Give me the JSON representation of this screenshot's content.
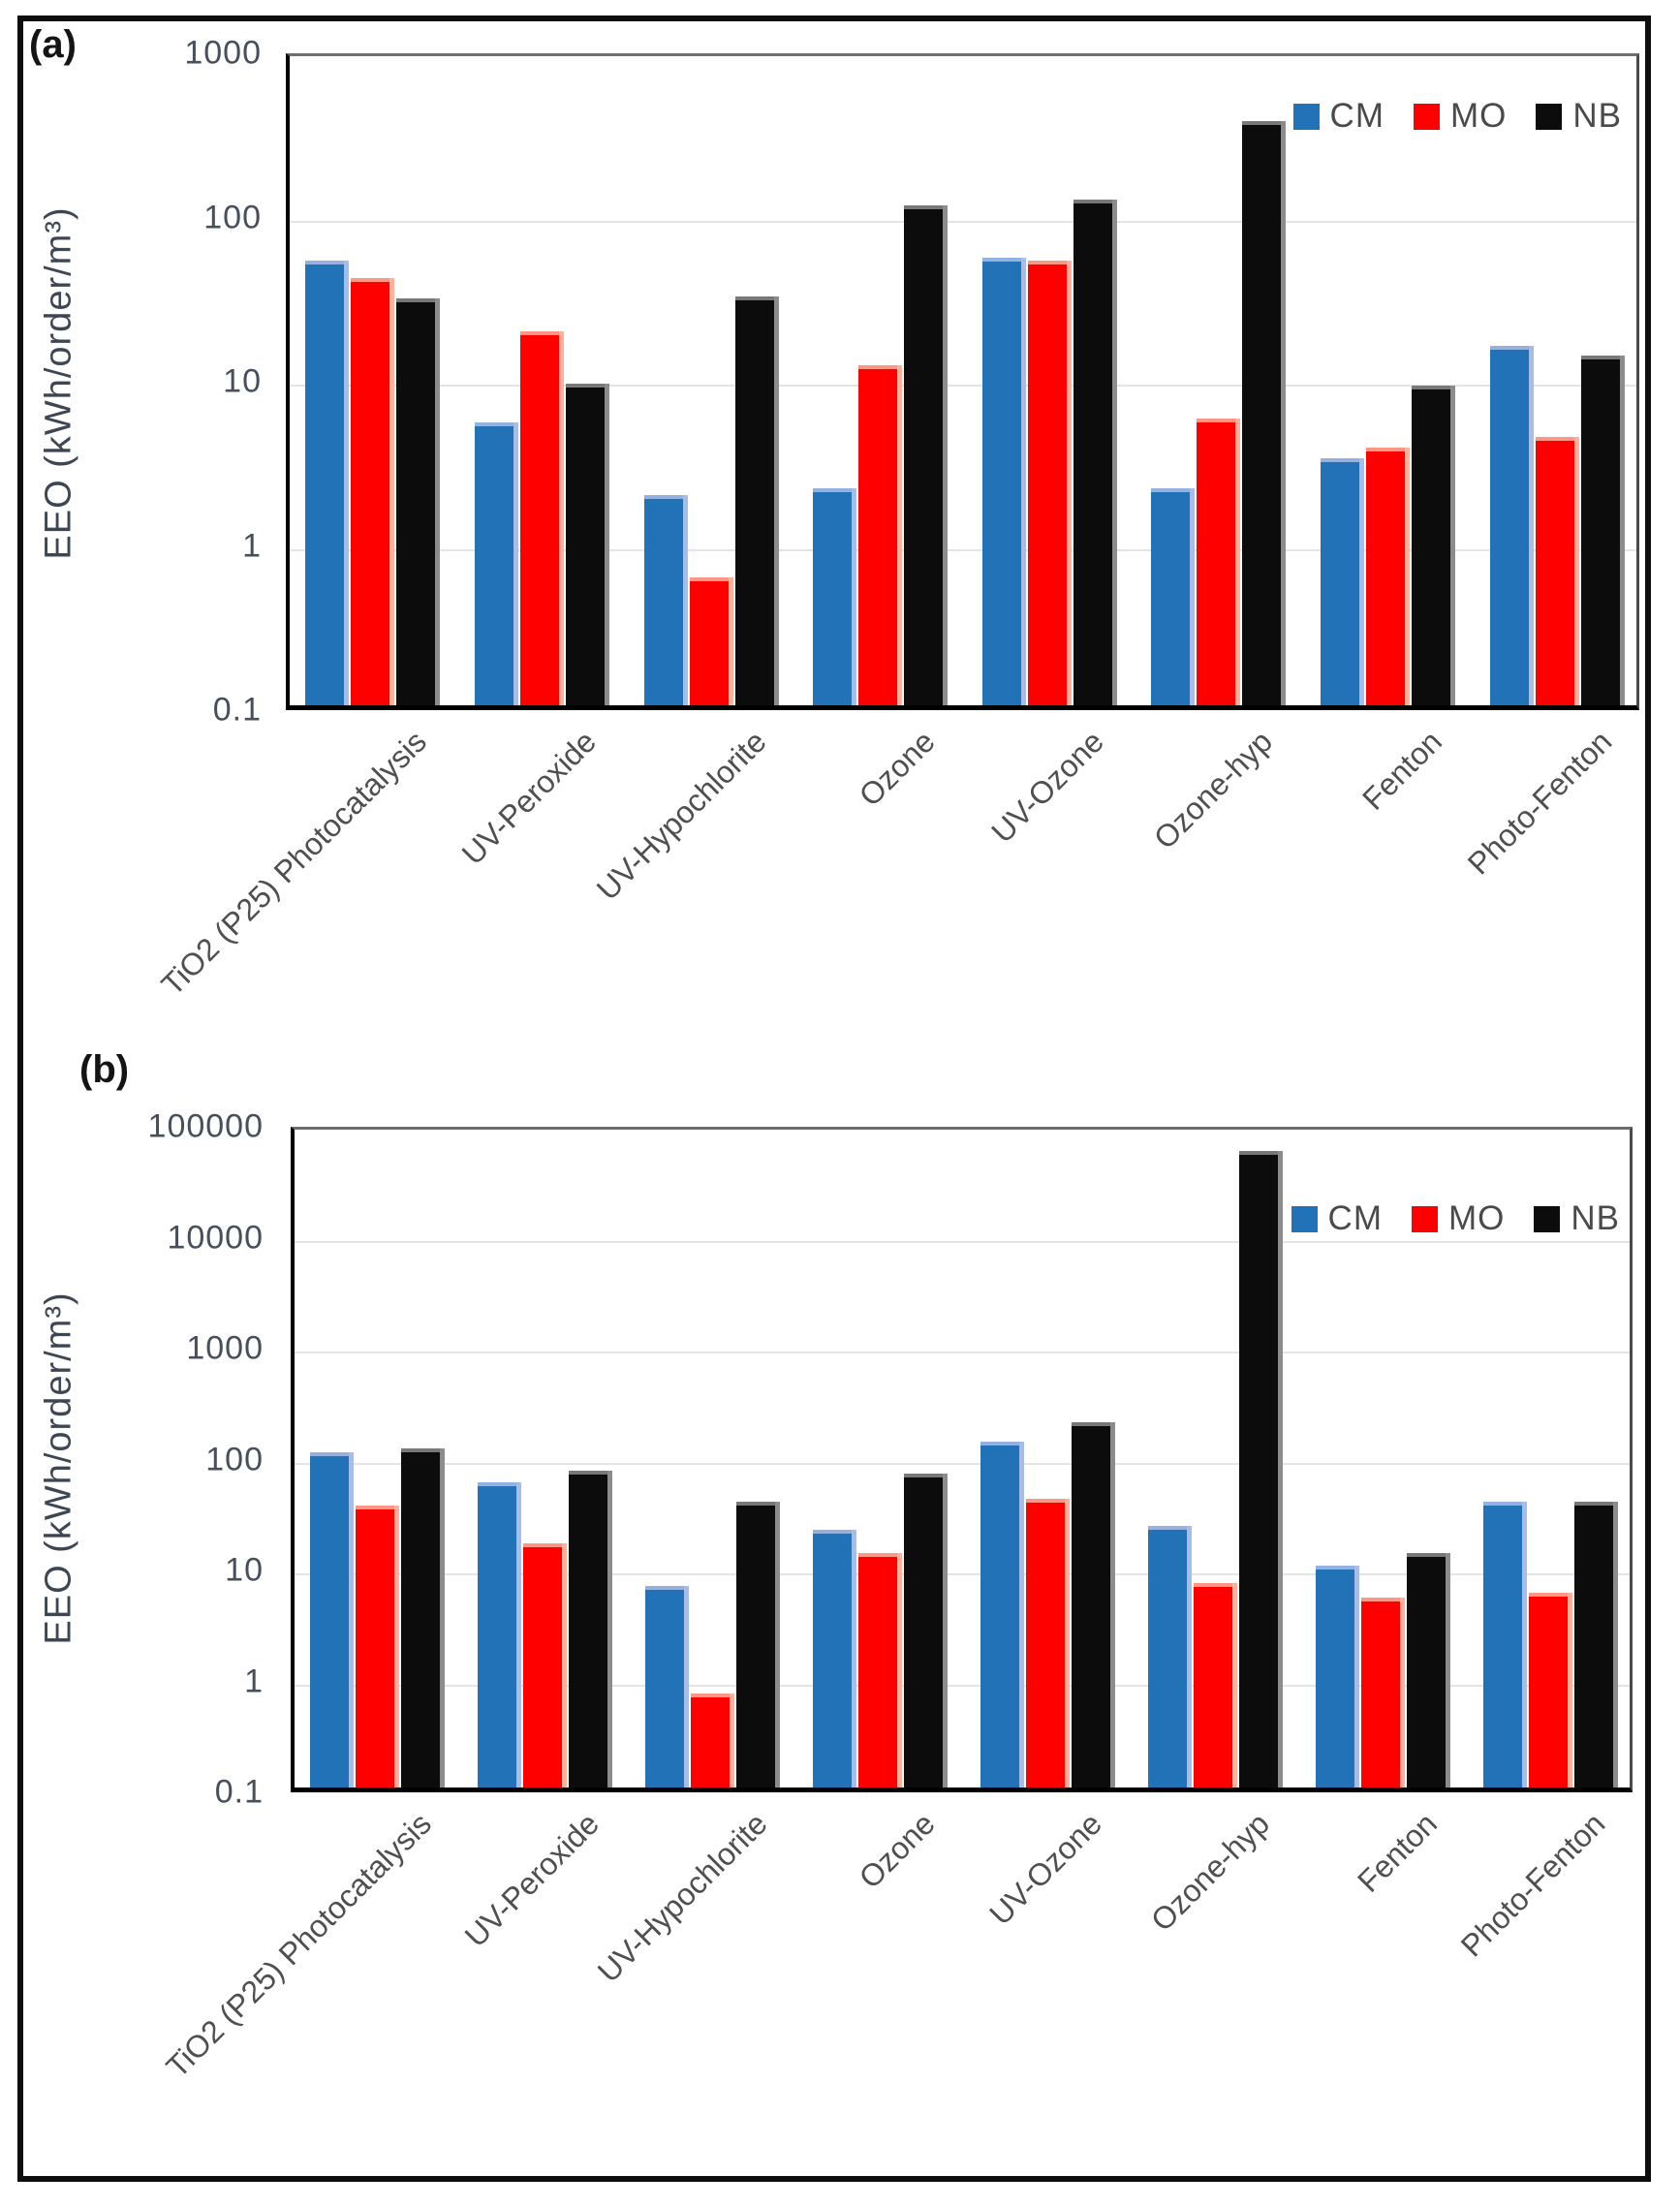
{
  "figure": {
    "panels": [
      {
        "label": "(a)"
      },
      {
        "label": "(b)"
      }
    ]
  },
  "chart_data": [
    {
      "type": "bar",
      "panel_label": "(a)",
      "scale": "log-y",
      "ylabel": "EEO (kWh/order/m³)",
      "ylim": [
        0.1,
        1000
      ],
      "yticks": [
        "1000",
        "100",
        "10",
        "1",
        "0.1"
      ],
      "grid": true,
      "legend_position": "top-right",
      "categories": [
        "TiO2 (P25) Photocatalysis",
        "UV-Peroxide",
        "UV-Hypochlorite",
        "Ozone",
        "UV-Ozone",
        "Ozone-hyp",
        "Fenton",
        "Photo-Fenton"
      ],
      "series": [
        {
          "name": "CM",
          "color": "#2272B8",
          "edge": "#A9BCE6",
          "values": [
            51,
            5.3,
            1.9,
            2.1,
            53,
            2.1,
            3.2,
            15.5
          ]
        },
        {
          "name": "MO",
          "color": "#FE0000",
          "edge": "#FFB09A",
          "values": [
            40,
            19,
            0.6,
            11.8,
            51,
            5.6,
            3.7,
            4.3
          ]
        },
        {
          "name": "NB",
          "color": "#0C0C0C",
          "edge": "#8C8C8C",
          "values": [
            30,
            9.1,
            31,
            110,
            120,
            360,
            8.9,
            13.5
          ]
        }
      ]
    },
    {
      "type": "bar",
      "panel_label": "(b)",
      "scale": "log-y",
      "ylabel": "EEO (kWh/order/m³)",
      "ylim": [
        0.1,
        100000
      ],
      "yticks": [
        "100000",
        "10000",
        "1000",
        "100",
        "10",
        "1",
        "0.1"
      ],
      "grid": true,
      "legend_position": "top-right",
      "categories": [
        "TiO2 (P25) Photocatalysis",
        "UV-Peroxide",
        "UV-Hypochlorite",
        "Ozone",
        "UV-Ozone",
        "Ozone-hyp",
        "Fenton",
        "Photo-Fenton"
      ],
      "series": [
        {
          "name": "CM",
          "color": "#2272B8",
          "edge": "#A9BCE6",
          "values": [
            105,
            56,
            6.5,
            21,
            130,
            23,
            10,
            38
          ]
        },
        {
          "name": "MO",
          "color": "#FE0000",
          "edge": "#FFB09A",
          "values": [
            35,
            16,
            0.7,
            13,
            40,
            7,
            5.1,
            5.7
          ]
        },
        {
          "name": "NB",
          "color": "#0C0C0C",
          "edge": "#8C8C8C",
          "values": [
            115,
            72,
            38,
            68,
            195,
            55000,
            13,
            38
          ]
        }
      ]
    }
  ]
}
